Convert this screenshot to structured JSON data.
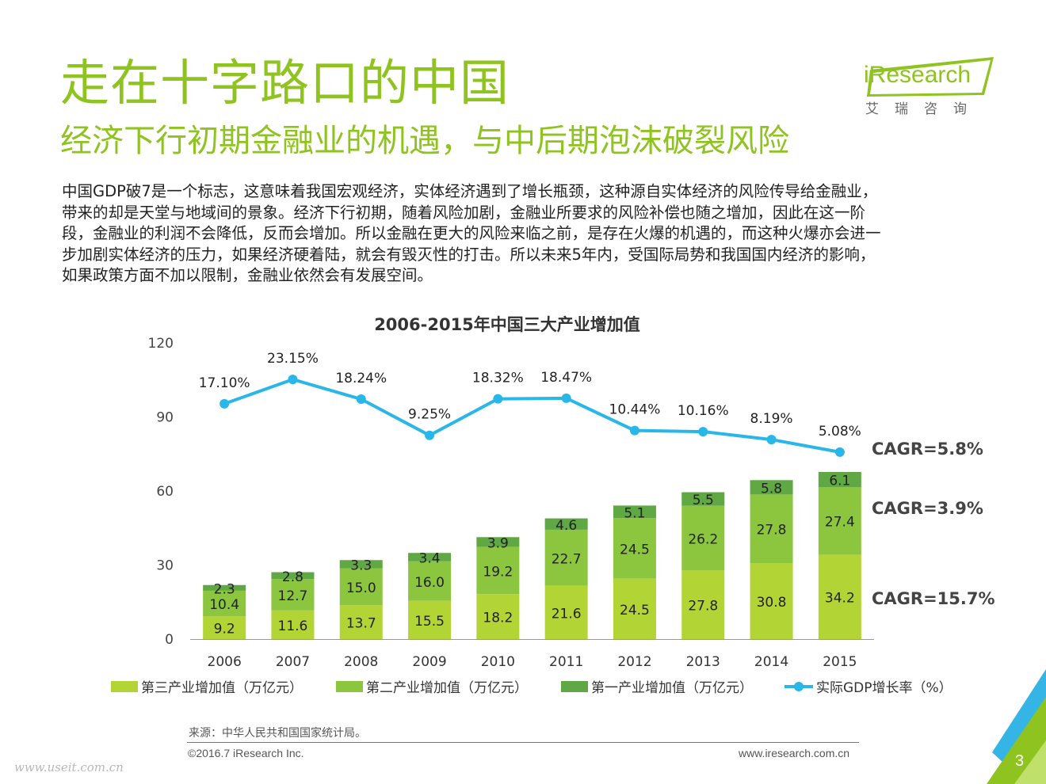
{
  "page": {
    "title": "走在十字路口的中国",
    "subtitle": "经济下行初期金融业的机遇，与中后期泡沫破裂风险",
    "body": "中国GDP破7是一个标志，这意味着我国宏观经济，实体经济遇到了增长瓶颈，这种源自实体经济的风险传导给金融业，\n带来的却是天堂与地域间的景象。经济下行初期，随着风险加剧，金融业所要求的风险补偿也随之增加，因此在这一阶\n段，金融业的利润不会降低，反而会增加。所以金融在更大的风险来临之前，是存在火爆的机遇的，而这种火爆亦会进一\n步加剧实体经济的压力，如果经济硬着陆，就会有毁灭性的打击。所以未来5年内，受国际局势和我国国内经济的影响，\n如果政策方面不加以限制，金融业依然会有发展空间。",
    "source": "来源：中华人民共和国国家统计局。",
    "copyright": "©2016.7 iResearch Inc.",
    "website": "www.iresearch.com.cn",
    "page_number": "3",
    "watermark": "www.useit.com.cn"
  },
  "logo": {
    "text": "iResearch",
    "cn": "艾瑞咨询"
  },
  "colors": {
    "accent": "#8fc31f",
    "tertiary": "#b3d435",
    "secondary": "#8cc63f",
    "primary": "#5fa843",
    "gdp_line": "#29b6e8",
    "corner_blue": "#35b5e5",
    "corner_green": "#8fc31f"
  },
  "chart_data": {
    "type": "bar",
    "stacked": true,
    "title": "2006-2015年中国三大产业增加值",
    "categories": [
      "2006",
      "2007",
      "2008",
      "2009",
      "2010",
      "2011",
      "2012",
      "2013",
      "2014",
      "2015"
    ],
    "ylim": [
      0,
      120
    ],
    "yticks": [
      "0",
      "30",
      "60",
      "90",
      "120"
    ],
    "series": [
      {
        "name": "第三产业增加值（万亿元）",
        "values": [
          9.2,
          11.6,
          13.7,
          15.5,
          18.2,
          21.6,
          24.5,
          27.8,
          30.8,
          34.2
        ],
        "labels": [
          "9.2",
          "11.6",
          "13.7",
          "15.5",
          "18.2",
          "21.6",
          "24.5",
          "27.8",
          "30.8",
          "34.2"
        ],
        "color": "#b3d435"
      },
      {
        "name": "第二产业增加值（万亿元）",
        "values": [
          10.4,
          12.7,
          15.0,
          16.0,
          19.2,
          22.7,
          24.5,
          26.2,
          27.8,
          27.4
        ],
        "labels": [
          "10.4",
          "12.7",
          "15.0",
          "16.0",
          "19.2",
          "22.7",
          "24.5",
          "26.2",
          "27.8",
          "27.4"
        ],
        "color": "#8cc63f"
      },
      {
        "name": "第一产业增加值（万亿元）",
        "values": [
          2.3,
          2.8,
          3.3,
          3.4,
          3.9,
          4.6,
          5.1,
          5.5,
          5.8,
          6.1
        ],
        "labels": [
          "2.3",
          "2.8",
          "3.3",
          "3.4",
          "3.9",
          "4.6",
          "5.1",
          "5.5",
          "5.8",
          "6.1"
        ],
        "color": "#5fa843"
      }
    ],
    "line": {
      "name": "实际GDP增长率（%）",
      "values": [
        17.1,
        23.15,
        18.24,
        9.25,
        18.32,
        18.47,
        10.44,
        10.16,
        8.19,
        5.08
      ],
      "labels": [
        "17.10%",
        "23.15%",
        "18.24%",
        "9.25%",
        "18.32%",
        "18.47%",
        "10.44%",
        "10.16%",
        "8.19%",
        "5.08%"
      ],
      "color": "#29b6e8"
    },
    "annotations": [
      "CAGR=5.8%",
      "CAGR=3.9%",
      "CAGR=15.7%"
    ],
    "legend_position": "bottom",
    "grid": false
  }
}
